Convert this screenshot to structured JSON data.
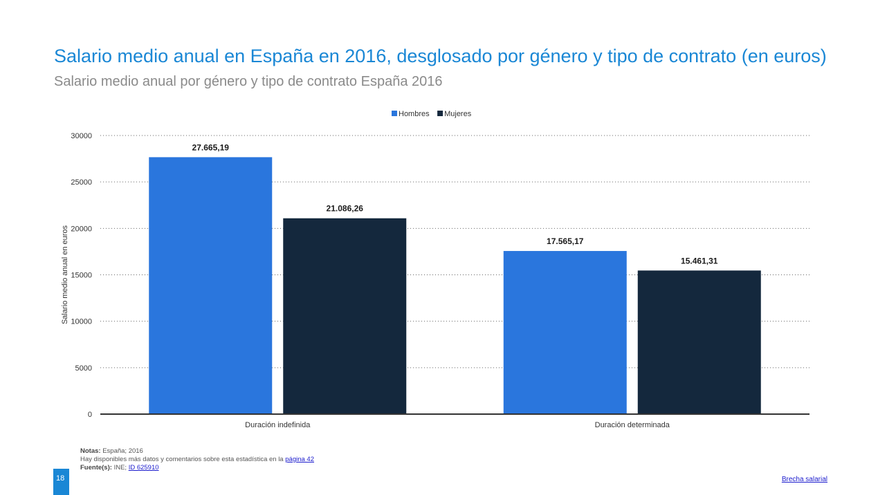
{
  "header": {
    "title": "Salario medio anual en España en 2016, desglosado por género y tipo de contrato (en euros)",
    "subtitle": "Salario medio anual por género y tipo de contrato España 2016"
  },
  "chart_data": {
    "type": "bar",
    "categories": [
      "Duración indefinida",
      "Duración determinada"
    ],
    "series": [
      {
        "name": "Hombres",
        "color": "#2a76dd",
        "values": [
          27665.19,
          17565.17
        ],
        "labels": [
          "27.665,19",
          "17.565,17"
        ]
      },
      {
        "name": "Mujeres",
        "color": "#14283d",
        "values": [
          21086.26,
          15461.31
        ],
        "labels": [
          "21.086,26",
          "15.461,31"
        ]
      }
    ],
    "ylabel": "Salario medio anual en euros",
    "xlabel": "",
    "ylim": [
      0,
      30000
    ],
    "yticks": [
      0,
      5000,
      10000,
      15000,
      20000,
      25000,
      30000
    ],
    "grid": true,
    "legend_position": "top-center"
  },
  "notes": {
    "notes_label": "Notas:",
    "notes_text": "España; 2016",
    "more_text": "Hay disponibles más datos y comentarios sobre esta estadística en la",
    "more_link": "página 42",
    "source_label": "Fuente(s):",
    "source_text": "INE;",
    "source_link": "ID 625910"
  },
  "footer": {
    "page_number": "18",
    "link": "Brecha salarial"
  }
}
